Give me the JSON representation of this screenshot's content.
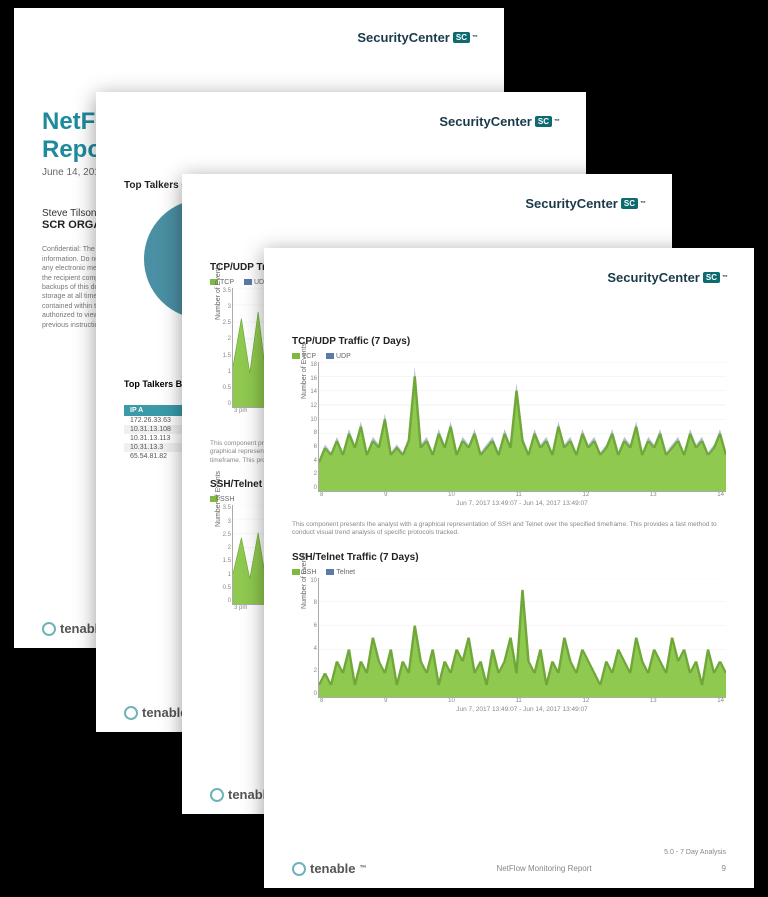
{
  "brand": {
    "name": "SecurityCenter",
    "badge": "SC",
    "tm": "™"
  },
  "vendor": {
    "name": "tenable",
    "tm": "™"
  },
  "page1": {
    "title_line1": "NetFlo",
    "title_line2": "Repor",
    "date": "June 14, 201",
    "author": "Steve Tilson",
    "org": "SCR ORGA",
    "confidential": "Confidential: The following report contains confidential information. Do not distribute, email, fax, or transfer via any electronic mechanism unless it has been approved by the recipient company's security policy. All copies and backups of this document should be saved on protected storage at all times. Do not share any of the information contained within this report with anyone unless they are authorized to view the information. Violating any of the previous instructions is grounds for termination."
  },
  "page2": {
    "section_title": "Top Talkers Class C (All Traffic)",
    "pie": {
      "slice1_color": "#e6a93a",
      "slice1_pct": 45,
      "slice2_color": "#4a8fa3",
      "slice2_pct": 55
    },
    "table_title": "Top Talkers By IP A",
    "table_header": "IP A",
    "rows": [
      "172.26.33.63",
      "10.31.13.108",
      "10.31.13.113",
      "10.31.13.3",
      "65.54.81.82"
    ]
  },
  "page3": {
    "chart_a": {
      "title": "TCP/UDP Traffic (24 Hours)",
      "legend": [
        {
          "label": "TCP",
          "color": "#7fb843"
        },
        {
          "label": "UDP",
          "color": "#5b7aa8"
        }
      ],
      "ylabel": "Number of Events",
      "ylim": [
        0,
        3.5
      ],
      "ytick_step": 0.5,
      "xticks": [
        "3 pm"
      ],
      "grid_color": "#e6e6e6",
      "area_color": "#8fc94f",
      "line_color": "#6fa838"
    },
    "caption_a": "This component presents the analyst with a graphical representation of the specified timeframe. This provides",
    "chart_b_title": "SSH/Telnet Tra",
    "chart_b": {
      "legend": [
        {
          "label": "SSH",
          "color": "#7fb843"
        }
      ],
      "ylabel": "Number of Events",
      "ylim": [
        0,
        3.5
      ],
      "ytick_step": 0.5,
      "xticks": [
        "3 pm"
      ],
      "area_color": "#8fc94f",
      "line_color": "#6fa838"
    }
  },
  "page4": {
    "chart1": {
      "title": "TCP/UDP Traffic (7 Days)",
      "legend": [
        {
          "label": "TCP",
          "color": "#7fb843"
        },
        {
          "label": "UDP",
          "color": "#5b7aa8"
        }
      ],
      "ylabel": "Number of Events",
      "ylim": [
        0,
        18
      ],
      "yticks": [
        0,
        2,
        4,
        6,
        8,
        10,
        12,
        14,
        16,
        18
      ],
      "xticks": [
        "8",
        "9",
        "10",
        "11",
        "12",
        "13",
        "14"
      ],
      "xlabel": "Jun 7, 2017 13:49:07 - Jun 14, 2017 13:49:07",
      "grid_color": "#e6e6e6",
      "area_color": "#8fc94f",
      "overlay_color": "#6b86b0",
      "line_color": "#6fa838",
      "series": [
        4,
        6,
        5,
        7,
        5,
        8,
        6,
        9,
        5,
        7,
        6,
        10,
        5,
        6,
        5,
        7,
        16,
        6,
        7,
        5,
        8,
        6,
        9,
        5,
        7,
        6,
        8,
        5,
        6,
        7,
        5,
        8,
        6,
        14,
        7,
        5,
        8,
        6,
        7,
        5,
        9,
        6,
        7,
        5,
        8,
        6,
        7,
        5,
        6,
        8,
        5,
        7,
        6,
        9,
        5,
        7,
        6,
        8,
        5,
        6,
        7,
        5,
        8,
        6,
        7,
        5,
        6,
        8,
        5
      ]
    },
    "caption": "This component presents the analyst with a graphical representation of SSH and Telnet over the specified timeframe. This provides a fast method to conduct visual trend analysis of specific protocols tracked.",
    "chart2": {
      "title": "SSH/Telnet Traffic (7 Days)",
      "legend": [
        {
          "label": "SSH",
          "color": "#7fb843"
        },
        {
          "label": "Telnet",
          "color": "#5b7aa8"
        }
      ],
      "ylabel": "Number of Events",
      "ylim": [
        0,
        10
      ],
      "yticks": [
        0,
        2,
        4,
        6,
        8,
        10
      ],
      "xticks": [
        "8",
        "9",
        "10",
        "11",
        "12",
        "13",
        "14"
      ],
      "xlabel": "Jun 7, 2017 13:49:07 - Jun 14, 2017 13:49:07",
      "area_color": "#8fc94f",
      "line_color": "#6fa838",
      "series": [
        1,
        2,
        1,
        3,
        2,
        4,
        1,
        3,
        2,
        5,
        3,
        2,
        4,
        1,
        3,
        2,
        6,
        3,
        2,
        4,
        1,
        3,
        2,
        4,
        3,
        5,
        2,
        3,
        1,
        4,
        2,
        3,
        5,
        2,
        9,
        3,
        2,
        4,
        1,
        3,
        2,
        5,
        3,
        2,
        4,
        3,
        2,
        1,
        3,
        2,
        4,
        3,
        2,
        5,
        3,
        2,
        4,
        3,
        2,
        5,
        3,
        4,
        2,
        3,
        1,
        4,
        2,
        3,
        2
      ]
    },
    "footer_center": "NetFlow Monitoring Report",
    "footer_right_note": "5.0 - 7 Day Analysis",
    "page_num": "9"
  }
}
